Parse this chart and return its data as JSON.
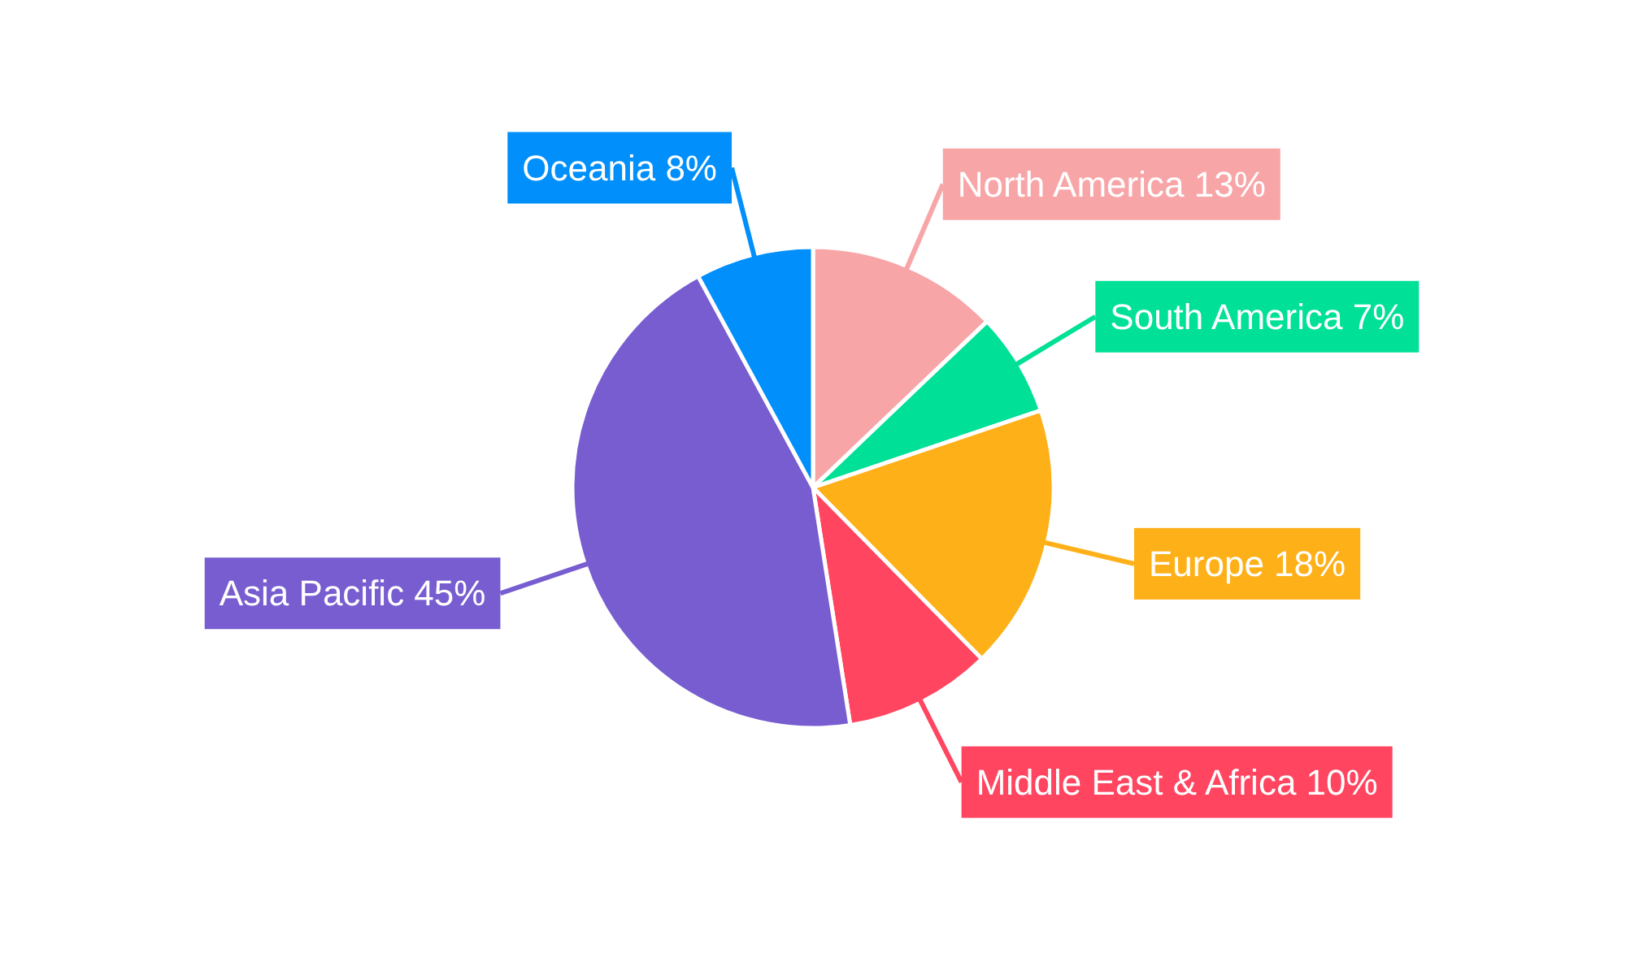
{
  "chart_data": {
    "type": "pie",
    "categories": [
      "North America",
      "South America",
      "Europe",
      "Middle East & Africa",
      "Asia Pacific",
      "Oceania"
    ],
    "values": [
      13,
      7,
      18,
      10,
      45,
      8
    ],
    "value_labels": [
      "13%",
      "7%",
      "18%",
      "10%",
      "45%",
      "8%"
    ],
    "colors": [
      "#f8a5a8",
      "#00e096",
      "#feb019",
      "#ff4560",
      "#775dd0",
      "#008ffb"
    ]
  }
}
